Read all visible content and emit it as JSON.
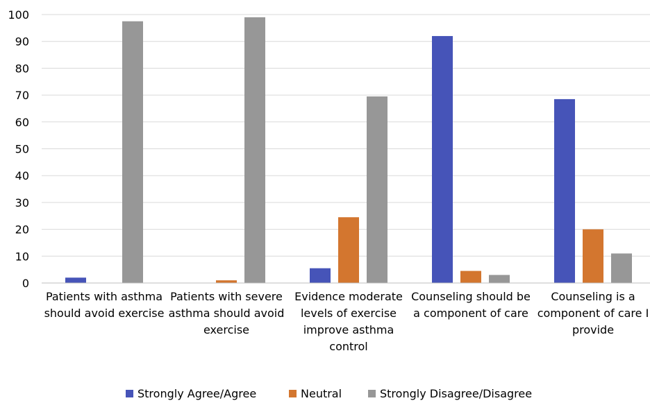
{
  "chart_data": {
    "type": "bar",
    "categories": [
      [
        "Patients with asthma",
        "should avoid exercise"
      ],
      [
        "Patients with severe",
        "asthma should avoid",
        "exercise"
      ],
      [
        "Evidence moderate",
        "levels of exercise",
        "improve asthma",
        "control"
      ],
      [
        "Counseling should be",
        "a component of care"
      ],
      [
        "Counseling is a",
        "component of care I",
        "provide"
      ]
    ],
    "series": [
      {
        "name": "Strongly Agree/Agree",
        "color": "#4654b8",
        "values": [
          2,
          0,
          5.5,
          92,
          68.5
        ]
      },
      {
        "name": "Neutral",
        "color": "#d3762f",
        "values": [
          0,
          1,
          24.5,
          4.5,
          20
        ]
      },
      {
        "name": "Strongly Disagree/Disagree",
        "color": "#979797",
        "values": [
          97.5,
          99,
          69.5,
          3,
          11
        ]
      }
    ],
    "ylim": [
      0,
      100
    ],
    "yticks": [
      0,
      10,
      20,
      30,
      40,
      50,
      60,
      70,
      80,
      90,
      100
    ],
    "grid": true,
    "legend": "bottom",
    "title": "",
    "xlabel": "",
    "ylabel": ""
  }
}
